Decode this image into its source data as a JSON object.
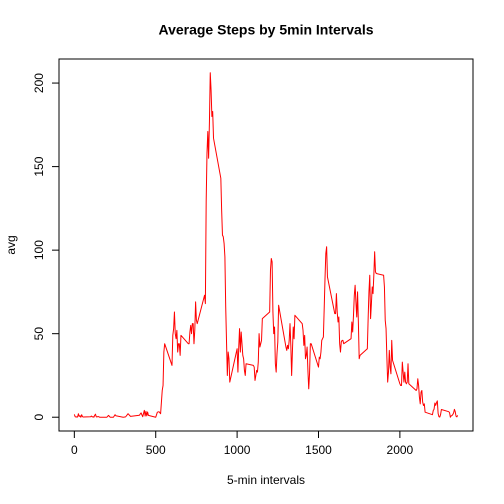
{
  "chart_data": {
    "type": "line",
    "title": "Average Steps by 5min Intervals",
    "xlabel": "5-min intervals",
    "ylabel": "avg",
    "x": [
      0,
      5,
      10,
      15,
      20,
      25,
      30,
      35,
      40,
      45,
      50,
      55,
      100,
      105,
      110,
      115,
      120,
      125,
      130,
      135,
      140,
      145,
      150,
      155,
      200,
      210,
      220,
      230,
      240,
      250,
      255,
      300,
      315,
      330,
      345,
      400,
      410,
      420,
      430,
      435,
      440,
      445,
      450,
      455,
      500,
      510,
      520,
      530,
      540,
      545,
      550,
      555,
      600,
      605,
      610,
      615,
      620,
      625,
      630,
      635,
      640,
      645,
      650,
      655,
      700,
      705,
      710,
      715,
      720,
      725,
      730,
      735,
      740,
      745,
      750,
      755,
      800,
      805,
      810,
      815,
      820,
      825,
      830,
      835,
      840,
      845,
      850,
      855,
      900,
      905,
      910,
      915,
      920,
      925,
      930,
      935,
      940,
      945,
      950,
      955,
      1000,
      1005,
      1010,
      1015,
      1020,
      1025,
      1030,
      1035,
      1040,
      1045,
      1050,
      1055,
      1100,
      1105,
      1110,
      1115,
      1120,
      1125,
      1130,
      1135,
      1140,
      1145,
      1150,
      1155,
      1200,
      1205,
      1210,
      1215,
      1220,
      1225,
      1230,
      1235,
      1240,
      1245,
      1250,
      1255,
      1300,
      1305,
      1310,
      1315,
      1320,
      1325,
      1330,
      1335,
      1340,
      1345,
      1350,
      1355,
      1400,
      1405,
      1410,
      1415,
      1420,
      1425,
      1430,
      1435,
      1440,
      1445,
      1450,
      1455,
      1500,
      1505,
      1510,
      1515,
      1520,
      1525,
      1530,
      1535,
      1540,
      1545,
      1550,
      1555,
      1600,
      1605,
      1610,
      1615,
      1620,
      1625,
      1630,
      1635,
      1640,
      1645,
      1650,
      1655,
      1700,
      1705,
      1710,
      1715,
      1720,
      1725,
      1730,
      1735,
      1740,
      1745,
      1750,
      1755,
      1800,
      1805,
      1810,
      1815,
      1820,
      1825,
      1830,
      1835,
      1840,
      1845,
      1850,
      1855,
      1900,
      1905,
      1910,
      1915,
      1920,
      1925,
      1930,
      1935,
      1940,
      1945,
      1950,
      1955,
      2000,
      2005,
      2010,
      2015,
      2020,
      2025,
      2030,
      2035,
      2040,
      2045,
      2050,
      2055,
      2100,
      2105,
      2110,
      2115,
      2120,
      2125,
      2130,
      2135,
      2140,
      2145,
      2150,
      2155,
      2200,
      2205,
      2210,
      2215,
      2220,
      2225,
      2230,
      2235,
      2240,
      2245,
      2250,
      2255,
      2300,
      2305,
      2310,
      2315,
      2320,
      2325,
      2330,
      2335,
      2340,
      2345,
      2350,
      2355
    ],
    "values": [
      1.7,
      0.3,
      0.1,
      0.2,
      0.1,
      2.1,
      0.5,
      0.9,
      0,
      1.5,
      0.3,
      0.1,
      0.3,
      0.7,
      0.2,
      0.3,
      0,
      1.1,
      1.8,
      0.2,
      0.2,
      0.4,
      0.3,
      0,
      0,
      1.1,
      0,
      0,
      0,
      1.5,
      0.9,
      0,
      0.2,
      2.1,
      0.5,
      1.2,
      2.6,
      0.3,
      4.1,
      0.7,
      3.5,
      0.8,
      3.1,
      1.1,
      0,
      3,
      3.3,
      2.1,
      16,
      19,
      39,
      44,
      31,
      49,
      53,
      63,
      50,
      47,
      52,
      39,
      44,
      44,
      37,
      49,
      44,
      44,
      51,
      55,
      50,
      56,
      56,
      44,
      52,
      69,
      58,
      56,
      73,
      68,
      129,
      158,
      171,
      155,
      177,
      206.2,
      196,
      180,
      183,
      167,
      143,
      124,
      109,
      108,
      104,
      96,
      66,
      45,
      25,
      39,
      35,
      21,
      41,
      27,
      42,
      53,
      39,
      51,
      44,
      37,
      35,
      28,
      25,
      32,
      31,
      30,
      22,
      25,
      28,
      27,
      33,
      50,
      42,
      44,
      46,
      59,
      63,
      88,
      95,
      93,
      63,
      50,
      54,
      32,
      27,
      38,
      45,
      67,
      42,
      40,
      43,
      41,
      46,
      56,
      43,
      25,
      40,
      54,
      47,
      61,
      56,
      52,
      43,
      49,
      35,
      37,
      42,
      28,
      17,
      26,
      44,
      44,
      30,
      36,
      35,
      39,
      46,
      47,
      48,
      65,
      83,
      98,
      102,
      84,
      62,
      62,
      74,
      63,
      57,
      60,
      44,
      39,
      45,
      46,
      46,
      44,
      47,
      57,
      51,
      61,
      73,
      79,
      69,
      60,
      75,
      57,
      35,
      37,
      41,
      59,
      75,
      85,
      59,
      68,
      78,
      74,
      85,
      99,
      87,
      86,
      85,
      78,
      58,
      53,
      36,
      21,
      27,
      40,
      30,
      26,
      46,
      34,
      20,
      19,
      19,
      33,
      27,
      21,
      27,
      21,
      20,
      21,
      32,
      20,
      16,
      17,
      23,
      19,
      12,
      8,
      15,
      16,
      9,
      7,
      8,
      3,
      1.5,
      4,
      4.8,
      8.5,
      7.1,
      8.7,
      9.8,
      2.2,
      0.3,
      0.1,
      1.6,
      4.6,
      3.3,
      2.8,
      0,
      0.8,
      1,
      1.6,
      2.6,
      4.7,
      3.3,
      0.6,
      0.2,
      1.1
    ],
    "color": "#ff0000",
    "xlim": [
      -94.2,
      2449.2
    ],
    "xticks": [
      0,
      500,
      1000,
      1500,
      2000
    ],
    "ylim": [
      -8.25,
      214.4
    ],
    "yticks": [
      0,
      50,
      100,
      150,
      200
    ]
  }
}
